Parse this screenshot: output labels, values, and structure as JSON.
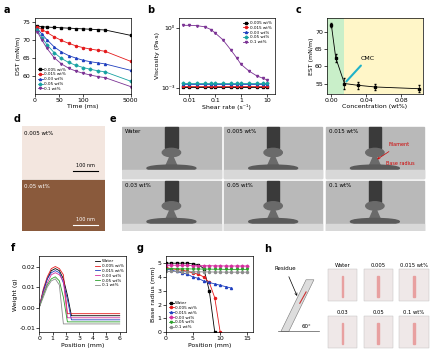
{
  "chart_data": [
    {
      "type": "line",
      "title": "a",
      "x_label": "Time (ms)",
      "y_label": "DST (mN/m)",
      "x": [
        5,
        15,
        25,
        40,
        55,
        70,
        85,
        100,
        115,
        130,
        145,
        5000
      ],
      "xlim": [
        0,
        5000
      ],
      "xticks": [
        0,
        50,
        100,
        5000
      ],
      "ylim": [
        55,
        76
      ],
      "yticks": [
        60,
        65,
        70,
        75
      ],
      "legend": "lower left",
      "series": [
        {
          "name": "0.005 wt%",
          "color": "#000000",
          "marker": "square",
          "values": [
            73.8,
            73.6,
            73.5,
            73.4,
            73.3,
            73.2,
            73.1,
            73.0,
            72.9,
            72.8,
            72.7,
            71.2
          ]
        },
        {
          "name": "0.015 wt%",
          "color": "#e41a1c",
          "marker": "circle",
          "values": [
            73.5,
            72.8,
            72.0,
            70.8,
            69.8,
            69.0,
            68.3,
            67.8,
            67.4,
            67.1,
            66.8,
            64.0
          ]
        },
        {
          "name": "0.03 wt%",
          "color": "#1f3fbf",
          "marker": "triangle",
          "values": [
            73.0,
            71.5,
            70.0,
            68.0,
            66.6,
            65.6,
            64.9,
            64.3,
            63.9,
            63.6,
            63.3,
            61.5
          ]
        },
        {
          "name": "0.05 wt%",
          "color": "#17a2a2",
          "marker": "diamond",
          "values": [
            72.6,
            70.5,
            68.6,
            66.4,
            64.8,
            63.7,
            62.9,
            62.3,
            61.8,
            61.4,
            61.1,
            58.5
          ]
        },
        {
          "name": "0.1 wt%",
          "color": "#7b3294",
          "marker": "triangle_down",
          "values": [
            72.2,
            69.8,
            67.6,
            65.0,
            63.3,
            62.1,
            61.3,
            60.7,
            60.2,
            59.8,
            59.5,
            57.0
          ]
        }
      ]
    },
    {
      "type": "line",
      "title": "b",
      "log": true,
      "x_label": "Shear rate (s⁻¹)",
      "y_label": "Viscosity (Pa·s)",
      "x": [
        0.006,
        0.01,
        0.02,
        0.04,
        0.07,
        0.1,
        0.2,
        0.4,
        0.7,
        1,
        2,
        4,
        7,
        10
      ],
      "xlim": [
        0.004,
        20
      ],
      "xticks": [
        0.01,
        0.1,
        1,
        10
      ],
      "ylim": [
        0.0005,
        3
      ],
      "yticks": [
        {
          "value": 0.001,
          "label": "10⁻³"
        },
        {
          "value": 1,
          "label": "10⁰"
        }
      ],
      "legend": "upper right",
      "series": [
        {
          "name": "0.005 wt%",
          "color": "#000000",
          "marker": "square",
          "values": [
            0.0011,
            0.0011,
            0.0011,
            0.0011,
            0.0011,
            0.0011,
            0.0011,
            0.0011,
            0.0011,
            0.0011,
            0.0011,
            0.0011,
            0.0011,
            0.0011
          ]
        },
        {
          "name": "0.015 wt%",
          "color": "#e41a1c",
          "marker": "circle",
          "values": [
            0.0013,
            0.0013,
            0.0013,
            0.0013,
            0.0013,
            0.0013,
            0.0013,
            0.0013,
            0.0013,
            0.0013,
            0.0013,
            0.0013,
            0.0013,
            0.0013
          ]
        },
        {
          "name": "0.03 wt%",
          "color": "#1f3fbf",
          "marker": "triangle",
          "values": [
            0.0015,
            0.0015,
            0.0015,
            0.0015,
            0.0015,
            0.0015,
            0.0015,
            0.0015,
            0.0015,
            0.0015,
            0.0015,
            0.0015,
            0.0015,
            0.0015
          ]
        },
        {
          "name": "0.05 wt%",
          "color": "#17a2a2",
          "marker": "diamond",
          "values": [
            0.0018,
            0.0018,
            0.0018,
            0.0018,
            0.0018,
            0.0018,
            0.0018,
            0.0018,
            0.0018,
            0.0018,
            0.0018,
            0.0018,
            0.0018,
            0.0018
          ]
        },
        {
          "name": "0.1 wt%",
          "color": "#7b3294",
          "marker": "triangle_down",
          "values": [
            1.3,
            1.3,
            1.25,
            1.1,
            0.8,
            0.55,
            0.25,
            0.08,
            0.03,
            0.015,
            0.007,
            0.004,
            0.003,
            0.0025
          ]
        }
      ]
    },
    {
      "type": "scatter",
      "title": "c",
      "x_label": "Concentration (wt%)",
      "y_label": "EST (mN/m)",
      "x": [
        0,
        0.005,
        0.015,
        0.03,
        0.05,
        0.1
      ],
      "values": [
        72,
        62.5,
        55,
        54.5,
        54,
        53.5
      ],
      "errors": [
        0.6,
        1.2,
        1.5,
        1,
        1,
        1
      ],
      "color": "#000000",
      "marker": "square",
      "xlim": [
        -0.005,
        0.105
      ],
      "xticks": [
        {
          "value": 0,
          "label": "0.00"
        },
        0.04,
        0.08
      ],
      "ylim": [
        52,
        74
      ],
      "yticks": [
        55,
        60,
        65,
        70
      ],
      "annotations": [
        "CMC"
      ],
      "shaded_until": 0.015
    },
    {
      "type": "image",
      "title": "d",
      "images": [
        {
          "label": "0.005 wt%",
          "scale_bar": "100 nm"
        },
        {
          "label": "0.05 wt%",
          "scale_bar": "100 nm"
        }
      ]
    },
    {
      "type": "image",
      "title": "e",
      "images": [
        "Water",
        "0.005 wt%",
        "0.015 wt%",
        "0.03 wt%",
        "0.05 wt%",
        "0.1 wt%"
      ],
      "annotations": [
        "Filament",
        "Base radius"
      ]
    },
    {
      "type": "line",
      "title": "f",
      "x_label": "Position (mm)",
      "y_label": "Weight (g)",
      "x": [
        0,
        0.3,
        0.6,
        0.9,
        1.2,
        1.5,
        1.8,
        2.1,
        2.4,
        2.7,
        3,
        4,
        5,
        6
      ],
      "xlim": [
        0,
        6.5
      ],
      "xticks": [
        0,
        1,
        2,
        3,
        4,
        5,
        6
      ],
      "ylim": [
        -0.012,
        0.025
      ],
      "yticks": [
        -0.01,
        {
          "value": 0,
          "label": "0.00"
        },
        0.01,
        0.02
      ],
      "legend": "upper right",
      "series": [
        {
          "name": "Water",
          "color": "#000000",
          "marker": "none",
          "values": [
            0,
            0.008,
            0.014,
            0.018,
            0.019,
            0.018,
            0.014,
            0.006,
            -0.004,
            -0.004,
            -0.004,
            -0.004,
            -0.004,
            -0.004
          ]
        },
        {
          "name": "0.005 wt%",
          "color": "#e41a1c",
          "marker": "none",
          "values": [
            0,
            0.009,
            0.015,
            0.019,
            0.02,
            0.019,
            0.016,
            -0.003,
            -0.003,
            -0.003,
            -0.003,
            -0.003,
            -0.003,
            -0.003
          ]
        },
        {
          "name": "0.015 wt%",
          "color": "#1f3fbf",
          "marker": "none",
          "values": [
            0,
            0.008,
            0.014,
            0.017,
            0.018,
            0.017,
            0.012,
            0.004,
            -0.006,
            -0.006,
            -0.006,
            -0.006,
            -0.006,
            -0.006
          ]
        },
        {
          "name": "0.03 wt%",
          "color": "#d62fa0",
          "marker": "none",
          "values": [
            0,
            0.007,
            0.012,
            0.016,
            0.017,
            0.016,
            0.013,
            -0.005,
            -0.005,
            -0.005,
            -0.005,
            -0.005,
            -0.005,
            -0.005
          ]
        },
        {
          "name": "0.05 wt%",
          "color": "#2ca02c",
          "marker": "none",
          "values": [
            0,
            0.006,
            0.011,
            0.014,
            0.015,
            0.013,
            0.005,
            -0.007,
            -0.007,
            -0.007,
            -0.007,
            -0.007,
            -0.007,
            -0.007
          ]
        },
        {
          "name": "0.1 wt%",
          "color": "#8c8c8c",
          "marker": "none",
          "values": [
            0,
            0.005,
            0.01,
            0.013,
            0.014,
            0.011,
            -0.008,
            -0.008,
            -0.008,
            -0.008,
            -0.008,
            -0.008,
            -0.008,
            -0.008
          ]
        }
      ]
    },
    {
      "type": "line",
      "title": "g",
      "x_label": "Position (mm)",
      "y_label": "Base radius (mm)",
      "x": [
        0,
        1,
        2,
        3,
        4,
        5,
        6,
        7,
        8,
        9,
        10,
        11,
        12,
        13,
        14,
        15
      ],
      "xlim": [
        0,
        16
      ],
      "xticks": [
        0,
        5,
        10,
        15
      ],
      "ylim": [
        0,
        5.5
      ],
      "yticks": [
        0,
        1,
        2,
        3,
        4,
        5
      ],
      "legend": "lower left",
      "series": [
        {
          "name": "Water",
          "color": "#000000",
          "marker": "square",
          "values": [
            5.0,
            5.0,
            5.0,
            5.0,
            5.0,
            4.95,
            4.9,
            4.6,
            3.0,
            0,
            null,
            null,
            null,
            null,
            null,
            null
          ]
        },
        {
          "name": "0.005 wt%",
          "color": "#e41a1c",
          "marker": "circle",
          "values": [
            4.7,
            4.6,
            4.55,
            4.5,
            4.4,
            4.3,
            4.2,
            4.0,
            3.6,
            2.5,
            0,
            null,
            null,
            null,
            null,
            null
          ]
        },
        {
          "name": "0.015 wt%",
          "color": "#1f3fbf",
          "marker": "triangle",
          "values": [
            4.6,
            4.5,
            4.4,
            4.3,
            4.2,
            4.0,
            3.9,
            3.7,
            3.6,
            3.5,
            3.4,
            3.3,
            3.2,
            null,
            null,
            null
          ]
        },
        {
          "name": "0.03 wt%",
          "color": "#d62fa0",
          "marker": "diamond",
          "values": [
            4.85,
            4.85,
            4.85,
            4.84,
            4.84,
            4.83,
            4.83,
            4.82,
            4.82,
            4.81,
            4.81,
            4.8,
            4.8,
            4.8,
            4.8,
            4.8
          ]
        },
        {
          "name": "0.05 wt%",
          "color": "#2ca02c",
          "marker": "triangle_down",
          "values": [
            4.6,
            4.6,
            4.6,
            4.59,
            4.59,
            4.58,
            4.58,
            4.57,
            4.57,
            4.56,
            4.56,
            4.55,
            4.55,
            4.55,
            4.55,
            4.55
          ]
        },
        {
          "name": "0.1 wt%",
          "color": "#8c8c8c",
          "marker": "circle",
          "values": [
            4.4,
            4.4,
            4.4,
            4.39,
            4.39,
            4.38,
            4.38,
            4.37,
            4.37,
            4.36,
            4.36,
            4.35,
            4.35,
            4.35,
            4.35,
            4.35
          ]
        }
      ]
    },
    {
      "type": "image",
      "title": "h",
      "images": [
        "Water",
        "0.005",
        "0.015 wt%",
        "0.03",
        "0.05",
        "0.1 wt%"
      ],
      "annotations": [
        "Residue",
        "60°"
      ]
    }
  ]
}
